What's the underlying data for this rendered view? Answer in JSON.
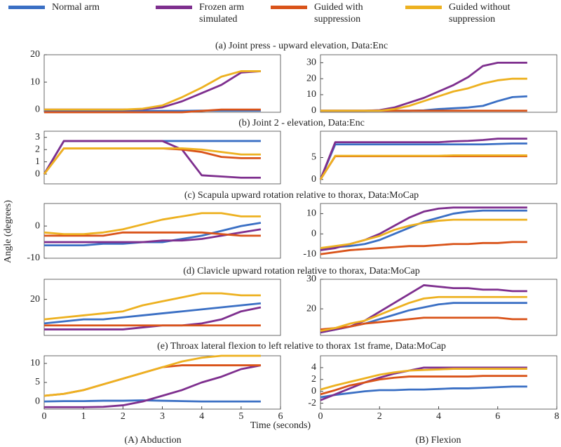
{
  "y_label": "Angle (degrees)",
  "x_label": "Time (seconds)",
  "column_labels": [
    "(A) Abduction",
    "(B) Flexion"
  ],
  "row_titles": [
    "(a) Joint press - upward elevation, Data:Enc",
    "(b) Joint 2 - elevation, Data:Enc",
    "(c) Scapula upward rotation relative to thorax, Data:MoCap",
    "(d) Clavicle upward rotation relative to thorax, Data:MoCap",
    "(e) Throax lateral flexion to left relative to thorax 1st frame, Data:MoCap"
  ],
  "chart_data": [
    {
      "type": "line",
      "xlim": [
        0,
        6
      ],
      "ylim": [
        -1,
        20
      ],
      "yticks": [
        0,
        10,
        20
      ],
      "x": [
        0,
        0.5,
        1,
        1.5,
        2,
        2.5,
        3,
        3.5,
        4,
        4.5,
        5,
        5.5
      ],
      "series": [
        {
          "name": "Normal arm",
          "color": "#3a6fc4",
          "values": [
            -0.5,
            -0.5,
            -0.5,
            -0.5,
            -0.5,
            -0.5,
            -0.5,
            -0.5,
            -0.4,
            -0.4,
            -0.4,
            -0.4
          ]
        },
        {
          "name": "Frozen arm simulated",
          "color": "#7e2f8e",
          "values": [
            0,
            0,
            0,
            0,
            0,
            0.1,
            0.8,
            3,
            6,
            9,
            13.5,
            14
          ]
        },
        {
          "name": "Guided with suppression",
          "color": "#d95319",
          "values": [
            -1,
            -1,
            -1,
            -1,
            -1,
            -1,
            -1,
            -1,
            -0.5,
            0,
            0,
            0
          ]
        },
        {
          "name": "Guided without suppression",
          "color": "#edb120",
          "values": [
            0,
            0,
            0,
            0,
            0,
            0.3,
            1.5,
            4.5,
            8,
            12,
            14,
            14
          ]
        }
      ]
    },
    {
      "type": "line",
      "xlim": [
        0,
        8
      ],
      "ylim": [
        -1,
        35
      ],
      "yticks": [
        0,
        10,
        20,
        30
      ],
      "x": [
        0,
        0.5,
        1,
        1.5,
        2,
        2.5,
        3,
        3.5,
        4,
        4.5,
        5,
        5.5,
        6,
        6.5,
        7
      ],
      "series": [
        {
          "name": "Normal arm",
          "color": "#3a6fc4",
          "values": [
            0,
            0,
            0,
            0,
            0,
            0,
            0,
            0.2,
            1,
            1.5,
            2,
            3,
            6,
            8.5,
            9
          ]
        },
        {
          "name": "Frozen arm simulated",
          "color": "#7e2f8e",
          "values": [
            0,
            0,
            0,
            0,
            0.3,
            2,
            5,
            8,
            12,
            16,
            21,
            28,
            30,
            30,
            30
          ]
        },
        {
          "name": "Guided with suppression",
          "color": "#d95319",
          "values": [
            0,
            0,
            0,
            0,
            0,
            0,
            0,
            0,
            0,
            0,
            0,
            0,
            0,
            0,
            0
          ]
        },
        {
          "name": "Guided without suppression",
          "color": "#edb120",
          "values": [
            0,
            0,
            0,
            0,
            0,
            1,
            3,
            6,
            9,
            12,
            14,
            17,
            19,
            20,
            20
          ]
        }
      ]
    },
    {
      "type": "line",
      "xlim": [
        0,
        6
      ],
      "ylim": [
        -0.8,
        3.5
      ],
      "yticks": [
        0,
        1,
        2,
        3
      ],
      "x": [
        0,
        0.5,
        1,
        1.5,
        2,
        2.5,
        3,
        3.5,
        4,
        4.5,
        5,
        5.5
      ],
      "series": [
        {
          "name": "Normal arm",
          "color": "#3a6fc4",
          "values": [
            0,
            2.7,
            2.7,
            2.7,
            2.7,
            2.7,
            2.7,
            2.7,
            2.7,
            2.7,
            2.7,
            2.7
          ]
        },
        {
          "name": "Frozen arm simulated",
          "color": "#7e2f8e",
          "values": [
            0,
            2.7,
            2.7,
            2.7,
            2.7,
            2.7,
            2.7,
            2.0,
            -0.1,
            -0.2,
            -0.3,
            -0.3
          ]
        },
        {
          "name": "Guided with suppression",
          "color": "#d95319",
          "values": [
            0,
            2.1,
            2.1,
            2.1,
            2.1,
            2.1,
            2.1,
            2.0,
            1.8,
            1.4,
            1.3,
            1.3
          ]
        },
        {
          "name": "Guided without suppression",
          "color": "#edb120",
          "values": [
            0,
            2.1,
            2.1,
            2.1,
            2.1,
            2.1,
            2.1,
            2.1,
            2.0,
            1.8,
            1.6,
            1.6
          ]
        }
      ]
    },
    {
      "type": "line",
      "xlim": [
        0,
        8
      ],
      "ylim": [
        -1,
        11
      ],
      "yticks": [
        0,
        5
      ],
      "x": [
        0,
        0.5,
        1,
        1.5,
        2,
        2.5,
        3,
        3.5,
        4,
        4.5,
        5,
        5.5,
        6,
        6.5,
        7
      ],
      "series": [
        {
          "name": "Normal arm",
          "color": "#3a6fc4",
          "values": [
            0,
            8,
            8,
            8,
            8,
            8,
            8,
            8,
            8,
            8,
            8,
            8,
            8.1,
            8.2,
            8.2
          ]
        },
        {
          "name": "Frozen arm simulated",
          "color": "#7e2f8e",
          "values": [
            0,
            8.5,
            8.5,
            8.5,
            8.5,
            8.5,
            8.5,
            8.5,
            8.5,
            8.7,
            8.8,
            9,
            9.3,
            9.3,
            9.3
          ]
        },
        {
          "name": "Guided with suppression",
          "color": "#d95319",
          "values": [
            0,
            5.3,
            5.3,
            5.3,
            5.3,
            5.3,
            5.3,
            5.3,
            5.3,
            5.3,
            5.3,
            5.3,
            5.3,
            5.3,
            5.3
          ]
        },
        {
          "name": "Guided without suppression",
          "color": "#edb120",
          "values": [
            0,
            5.4,
            5.4,
            5.4,
            5.4,
            5.4,
            5.4,
            5.4,
            5.4,
            5.5,
            5.5,
            5.5,
            5.5,
            5.5,
            5.5
          ]
        }
      ]
    },
    {
      "type": "line",
      "xlim": [
        0,
        6
      ],
      "ylim": [
        -10,
        7
      ],
      "yticks": [
        -10,
        0
      ],
      "x": [
        0,
        0.5,
        1,
        1.5,
        2,
        2.5,
        3,
        3.5,
        4,
        4.5,
        5,
        5.5
      ],
      "series": [
        {
          "name": "Normal arm",
          "color": "#3a6fc4",
          "values": [
            -6,
            -6,
            -6,
            -5.5,
            -5.5,
            -5,
            -5,
            -4,
            -3,
            -1.5,
            0,
            1
          ]
        },
        {
          "name": "Frozen arm simulated",
          "color": "#7e2f8e",
          "values": [
            -5,
            -5,
            -5,
            -5,
            -5,
            -5,
            -4.5,
            -4.5,
            -4,
            -3,
            -2,
            -1
          ]
        },
        {
          "name": "Guided with suppression",
          "color": "#d95319",
          "values": [
            -3,
            -3,
            -3,
            -3,
            -2,
            -2,
            -2,
            -2,
            -2,
            -2.5,
            -3,
            -3
          ]
        },
        {
          "name": "Guided without suppression",
          "color": "#edb120",
          "values": [
            -2,
            -2.5,
            -2.5,
            -2,
            -1,
            0.5,
            2,
            3,
            4,
            4,
            3,
            3
          ]
        }
      ]
    },
    {
      "type": "line",
      "xlim": [
        0,
        8
      ],
      "ylim": [
        -12,
        15
      ],
      "yticks": [
        -10,
        0,
        10
      ],
      "x": [
        0,
        0.5,
        1,
        1.5,
        2,
        2.5,
        3,
        3.5,
        4,
        4.5,
        5,
        5.5,
        6,
        6.5,
        7
      ],
      "series": [
        {
          "name": "Normal arm",
          "color": "#3a6fc4",
          "values": [
            -7,
            -6.5,
            -6,
            -5,
            -3,
            0,
            3,
            6,
            8,
            10,
            11,
            11.5,
            11.5,
            11.5,
            11.5
          ]
        },
        {
          "name": "Frozen arm simulated",
          "color": "#7e2f8e",
          "values": [
            -8,
            -7,
            -5,
            -3,
            0,
            4,
            8,
            11,
            12.5,
            13,
            13,
            13,
            13,
            13,
            13
          ]
        },
        {
          "name": "Guided with suppression",
          "color": "#d95319",
          "values": [
            -10,
            -9,
            -8,
            -7.5,
            -7,
            -6.5,
            -6,
            -6,
            -5.5,
            -5,
            -5,
            -4.5,
            -4.5,
            -4,
            -4
          ]
        },
        {
          "name": "Guided without suppression",
          "color": "#edb120",
          "values": [
            -7,
            -6,
            -5,
            -3,
            -1,
            2,
            4,
            5.5,
            6.5,
            7,
            7,
            7,
            7,
            7,
            7
          ]
        }
      ]
    },
    {
      "type": "line",
      "xlim": [
        0,
        6
      ],
      "ylim": [
        11,
        25
      ],
      "yticks": [
        20
      ],
      "x": [
        0,
        0.5,
        1,
        1.5,
        2,
        2.5,
        3,
        3.5,
        4,
        4.5,
        5,
        5.5
      ],
      "series": [
        {
          "name": "Normal arm",
          "color": "#3a6fc4",
          "values": [
            14,
            14.5,
            15,
            15,
            15.5,
            16,
            16.5,
            17,
            17.5,
            18,
            18.5,
            19
          ]
        },
        {
          "name": "Frozen arm simulated",
          "color": "#7e2f8e",
          "values": [
            12.5,
            12.5,
            12.5,
            12.5,
            12.5,
            13,
            13.5,
            13.5,
            14,
            15,
            17,
            18
          ]
        },
        {
          "name": "Guided with suppression",
          "color": "#d95319",
          "values": [
            13.5,
            13.5,
            13.5,
            13.5,
            13.5,
            13.5,
            13.5,
            13.5,
            13.5,
            13.5,
            13.5,
            13.5
          ]
        },
        {
          "name": "Guided without suppression",
          "color": "#edb120",
          "values": [
            15,
            15.5,
            16,
            16.5,
            17,
            18.5,
            19.5,
            20.5,
            21.5,
            21.5,
            21,
            21
          ]
        }
      ]
    },
    {
      "type": "line",
      "xlim": [
        0,
        8
      ],
      "ylim": [
        11,
        30
      ],
      "yticks": [
        20,
        30
      ],
      "x": [
        0,
        0.5,
        1,
        1.5,
        2,
        2.5,
        3,
        3.5,
        4,
        4.5,
        5,
        5.5,
        6,
        6.5,
        7
      ],
      "series": [
        {
          "name": "Normal arm",
          "color": "#3a6fc4",
          "values": [
            12,
            13,
            14,
            15,
            16.5,
            18,
            19.5,
            20.5,
            21.5,
            22,
            22,
            22,
            22,
            22,
            22
          ]
        },
        {
          "name": "Frozen arm simulated",
          "color": "#7e2f8e",
          "values": [
            12,
            13,
            14,
            16,
            19,
            22,
            25,
            28,
            27.5,
            27,
            27,
            26.5,
            26.5,
            26,
            26
          ]
        },
        {
          "name": "Guided with suppression",
          "color": "#d95319",
          "values": [
            13,
            13.5,
            14,
            15,
            15.5,
            16,
            16.5,
            17,
            17,
            17,
            17,
            17,
            17,
            16.5,
            16.5
          ]
        },
        {
          "name": "Guided without suppression",
          "color": "#edb120",
          "values": [
            12.5,
            13.5,
            15,
            16,
            18,
            20,
            22,
            23.5,
            24,
            24,
            24,
            24,
            24,
            24,
            24
          ]
        }
      ]
    },
    {
      "type": "line",
      "xlim": [
        0,
        6
      ],
      "ylim": [
        -2,
        12
      ],
      "yticks": [
        0,
        5,
        10
      ],
      "xticks": [
        0,
        1,
        2,
        3,
        4,
        5,
        6
      ],
      "x": [
        0,
        0.5,
        1,
        1.5,
        2,
        2.5,
        3,
        3.5,
        4,
        4.5,
        5,
        5.5
      ],
      "series": [
        {
          "name": "Normal arm",
          "color": "#3a6fc4",
          "values": [
            0,
            0.1,
            0.1,
            0.2,
            0.2,
            0.3,
            0.2,
            0.1,
            0,
            0,
            0,
            0
          ]
        },
        {
          "name": "Frozen arm simulated",
          "color": "#7e2f8e",
          "values": [
            -1.5,
            -1.5,
            -1.5,
            -1.4,
            -1,
            0,
            1.5,
            3,
            5,
            6.5,
            8.5,
            9.5
          ]
        },
        {
          "name": "Guided with suppression",
          "color": "#d95319",
          "values": [
            1.5,
            2,
            3,
            4.5,
            6,
            7.5,
            9,
            9.5,
            9.5,
            9.5,
            9.5,
            9.5
          ]
        },
        {
          "name": "Guided without suppression",
          "color": "#edb120",
          "values": [
            1.5,
            2,
            3,
            4.5,
            6,
            7.5,
            9,
            10.5,
            11.5,
            12,
            12,
            12
          ]
        }
      ]
    },
    {
      "type": "line",
      "xlim": [
        0,
        8
      ],
      "ylim": [
        -3,
        6
      ],
      "yticks": [
        -2,
        0,
        2,
        4
      ],
      "xticks": [
        0,
        2,
        4,
        6,
        8
      ],
      "x": [
        0,
        0.5,
        1,
        1.5,
        2,
        2.5,
        3,
        3.5,
        4,
        4.5,
        5,
        5.5,
        6,
        6.5,
        7
      ],
      "series": [
        {
          "name": "Normal arm",
          "color": "#3a6fc4",
          "values": [
            -1,
            -0.6,
            -0.3,
            0,
            0.2,
            0.2,
            0.3,
            0.3,
            0.4,
            0.5,
            0.5,
            0.6,
            0.7,
            0.8,
            0.8
          ]
        },
        {
          "name": "Frozen arm simulated",
          "color": "#7e2f8e",
          "values": [
            -1.5,
            -0.5,
            0.5,
            1.5,
            2.3,
            3,
            3.5,
            4,
            4,
            4,
            4,
            4,
            4,
            4,
            4
          ]
        },
        {
          "name": "Guided with suppression",
          "color": "#d95319",
          "values": [
            -0.5,
            0.2,
            1,
            1.5,
            2,
            2.3,
            2.5,
            2.5,
            2.5,
            2.5,
            2.5,
            2.6,
            2.6,
            2.6,
            2.6
          ]
        },
        {
          "name": "Guided without suppression",
          "color": "#edb120",
          "values": [
            0.3,
            1,
            1.6,
            2.2,
            2.8,
            3.2,
            3.5,
            3.6,
            3.7,
            3.8,
            3.8,
            3.8,
            3.8,
            3.8,
            3.8
          ]
        }
      ]
    }
  ]
}
